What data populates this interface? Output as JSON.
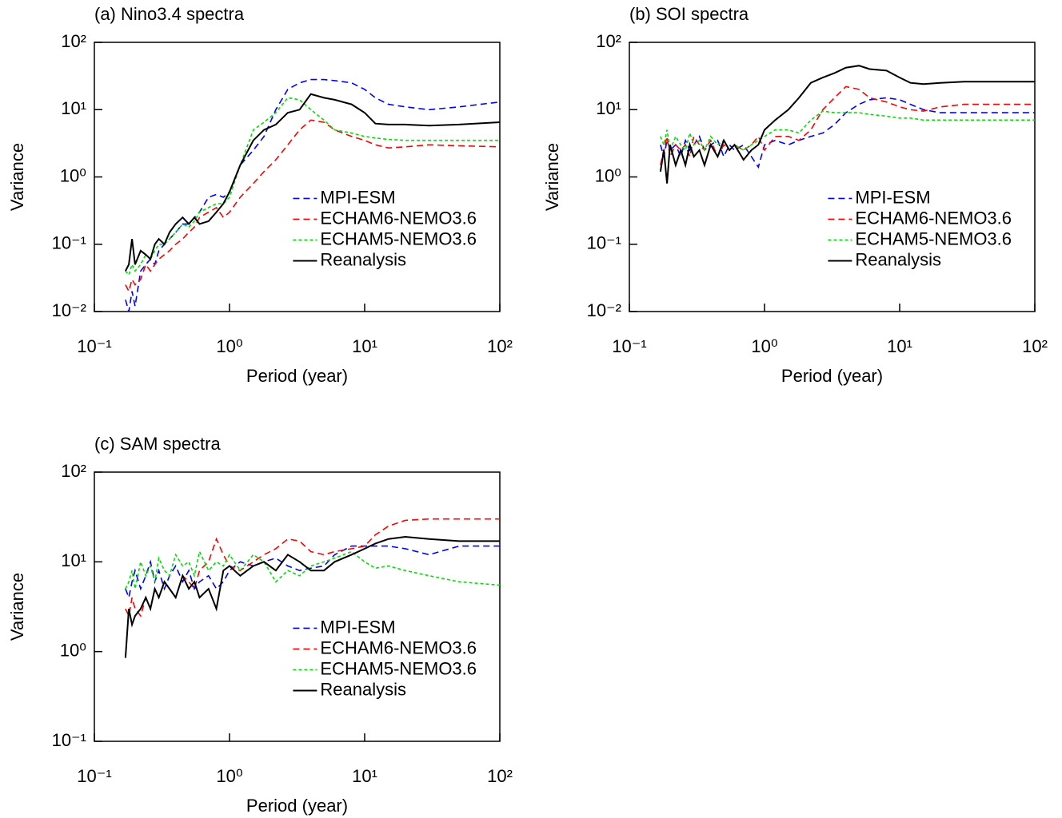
{
  "chart_data": [
    {
      "type": "line",
      "title": "(a) Nino3.4 spectra",
      "xlabel": "Period (year)",
      "ylabel": "Variance",
      "log_x": true,
      "log_y": true,
      "legend": "center",
      "xlim": [
        0.1,
        100
      ],
      "ylim": [
        0.01,
        100
      ],
      "xticks": [
        {
          "value": 0.1,
          "label": "10⁻¹"
        },
        {
          "value": 1,
          "label": "10⁰"
        },
        {
          "value": 10,
          "label": "10¹"
        },
        {
          "value": 100,
          "label": "10²"
        }
      ],
      "yticks": [
        {
          "value": 0.01,
          "label": "10⁻²"
        },
        {
          "value": 0.1,
          "label": "10⁻¹"
        },
        {
          "value": 1,
          "label": "10⁰"
        },
        {
          "value": 10,
          "label": "10¹"
        },
        {
          "value": 100,
          "label": "10²"
        }
      ],
      "x": [
        0.17,
        0.18,
        0.19,
        0.2,
        0.22,
        0.24,
        0.26,
        0.28,
        0.3,
        0.33,
        0.36,
        0.4,
        0.45,
        0.5,
        0.55,
        0.6,
        0.7,
        0.8,
        0.9,
        1,
        1.2,
        1.5,
        1.8,
        2.2,
        2.7,
        3.3,
        4,
        5,
        6,
        8,
        10,
        12,
        15,
        20,
        30,
        50,
        100
      ],
      "series": [
        {
          "name": "MPI-ESM",
          "color": "#0000ff",
          "dash": "dashed",
          "values": [
            0.015,
            0.01,
            0.02,
            0.012,
            0.04,
            0.05,
            0.06,
            0.05,
            0.08,
            0.1,
            0.12,
            0.15,
            0.2,
            0.2,
            0.25,
            0.3,
            0.5,
            0.55,
            0.5,
            0.6,
            1.5,
            2.5,
            4,
            10,
            20,
            25,
            28,
            28,
            27,
            25,
            20,
            15,
            12,
            11,
            10,
            11,
            13
          ]
        },
        {
          "name": "ECHAM6-NEMO3.6",
          "color": "#ff0000",
          "dash": "dashed",
          "values": [
            0.025,
            0.02,
            0.03,
            0.025,
            0.03,
            0.05,
            0.04,
            0.05,
            0.06,
            0.07,
            0.08,
            0.1,
            0.12,
            0.15,
            0.18,
            0.25,
            0.3,
            0.35,
            0.25,
            0.3,
            0.5,
            0.8,
            1.2,
            1.8,
            3,
            5,
            7,
            6.5,
            5,
            4,
            3.5,
            3,
            2.7,
            2.8,
            3,
            2.9,
            2.8
          ]
        },
        {
          "name": "ECHAM5-NEMO3.6",
          "color": "#00e000",
          "dash": "dotted",
          "values": [
            0.04,
            0.035,
            0.05,
            0.04,
            0.05,
            0.07,
            0.06,
            0.08,
            0.1,
            0.1,
            0.12,
            0.15,
            0.2,
            0.18,
            0.22,
            0.3,
            0.35,
            0.4,
            0.4,
            0.5,
            1.5,
            5,
            6.5,
            9,
            15,
            14,
            10,
            7,
            5,
            4.5,
            4,
            3.8,
            3.6,
            3.5,
            3.5,
            3.5,
            3.5
          ]
        },
        {
          "name": "Reanalysis",
          "color": "#000000",
          "dash": "solid",
          "values": [
            0.04,
            0.05,
            0.12,
            0.05,
            0.08,
            0.07,
            0.06,
            0.1,
            0.12,
            0.1,
            0.15,
            0.2,
            0.25,
            0.2,
            0.25,
            0.2,
            0.22,
            0.3,
            0.4,
            0.6,
            1.5,
            3.5,
            5,
            6,
            9,
            10,
            17,
            15,
            14,
            12,
            9,
            6.2,
            6,
            6,
            5.8,
            6,
            6.5
          ]
        }
      ]
    },
    {
      "type": "line",
      "title": "(b) SOI spectra",
      "xlabel": "Period (year)",
      "ylabel": "Variance",
      "log_x": true,
      "log_y": true,
      "legend": "center",
      "xlim": [
        0.1,
        100
      ],
      "ylim": [
        0.01,
        100
      ],
      "xticks": [
        {
          "value": 0.1,
          "label": "10⁻¹"
        },
        {
          "value": 1,
          "label": "10⁰"
        },
        {
          "value": 10,
          "label": "10¹"
        },
        {
          "value": 100,
          "label": "10²"
        }
      ],
      "yticks": [
        {
          "value": 0.01,
          "label": "10⁻²"
        },
        {
          "value": 0.1,
          "label": "10⁻¹"
        },
        {
          "value": 1,
          "label": "10⁰"
        },
        {
          "value": 10,
          "label": "10¹"
        },
        {
          "value": 100,
          "label": "10²"
        }
      ],
      "x": [
        0.17,
        0.18,
        0.19,
        0.2,
        0.22,
        0.24,
        0.26,
        0.28,
        0.3,
        0.33,
        0.36,
        0.4,
        0.45,
        0.5,
        0.55,
        0.6,
        0.7,
        0.8,
        0.9,
        1,
        1.2,
        1.5,
        1.8,
        2.2,
        2.7,
        3.3,
        4,
        5,
        6,
        8,
        10,
        12,
        15,
        20,
        30,
        50,
        100
      ],
      "series": [
        {
          "name": "MPI-ESM",
          "color": "#0000ff",
          "dash": "dashed",
          "values": [
            3,
            2,
            3.5,
            2.5,
            3,
            2,
            3.5,
            2.5,
            3,
            4,
            2.5,
            3,
            3.5,
            2,
            3,
            2.5,
            3,
            2,
            1.4,
            3,
            3.5,
            3,
            3.5,
            4,
            4.5,
            6,
            9,
            12,
            14,
            15,
            14,
            12,
            10,
            9,
            9,
            9,
            9
          ]
        },
        {
          "name": "ECHAM6-NEMO3.6",
          "color": "#ff0000",
          "dash": "dashed",
          "values": [
            1.5,
            2.5,
            4,
            2,
            3,
            2.5,
            3,
            2,
            4,
            3,
            2.5,
            3.5,
            2,
            3,
            2.5,
            3,
            2.5,
            3,
            4,
            2.5,
            4,
            4,
            3.5,
            5,
            10,
            15,
            22,
            20,
            15,
            13,
            11,
            10,
            9.5,
            11,
            12,
            12,
            12
          ]
        },
        {
          "name": "ECHAM5-NEMO3.6",
          "color": "#00e000",
          "dash": "dotted",
          "values": [
            4,
            3,
            5,
            2.5,
            4,
            3,
            2.5,
            4.5,
            3,
            3.5,
            2.5,
            4,
            3,
            3.5,
            2.5,
            3,
            2.5,
            3,
            3.5,
            4,
            5,
            5,
            4.5,
            7,
            9.5,
            9,
            9,
            9,
            8.5,
            8,
            7.5,
            7.5,
            7,
            7,
            7,
            7,
            7
          ]
        },
        {
          "name": "Reanalysis",
          "color": "#000000",
          "dash": "solid",
          "values": [
            1.2,
            2.5,
            0.8,
            3,
            1.5,
            2.5,
            1.5,
            3,
            2,
            2.5,
            1.5,
            3,
            2,
            3.5,
            2.5,
            3,
            1.8,
            2.5,
            3,
            5,
            7,
            10,
            15,
            25,
            30,
            35,
            42,
            45,
            40,
            38,
            30,
            25,
            24,
            25,
            26,
            26,
            26
          ]
        }
      ]
    },
    {
      "type": "line",
      "title": "(c) SAM spectra",
      "xlabel": "Period (year)",
      "ylabel": "Variance",
      "log_x": true,
      "log_y": true,
      "legend": "center",
      "xlim": [
        0.1,
        100
      ],
      "ylim": [
        0.1,
        100
      ],
      "xticks": [
        {
          "value": 0.1,
          "label": "10⁻¹"
        },
        {
          "value": 1,
          "label": "10⁰"
        },
        {
          "value": 10,
          "label": "10¹"
        },
        {
          "value": 100,
          "label": "10²"
        }
      ],
      "yticks": [
        {
          "value": 0.1,
          "label": "10⁻¹"
        },
        {
          "value": 1,
          "label": "10⁰"
        },
        {
          "value": 10,
          "label": "10¹"
        },
        {
          "value": 100,
          "label": "10²"
        }
      ],
      "x": [
        0.17,
        0.18,
        0.19,
        0.2,
        0.22,
        0.24,
        0.26,
        0.28,
        0.3,
        0.33,
        0.36,
        0.4,
        0.45,
        0.5,
        0.55,
        0.6,
        0.7,
        0.8,
        0.9,
        1,
        1.2,
        1.5,
        1.8,
        2.2,
        2.7,
        3.3,
        4,
        5,
        6,
        8,
        10,
        12,
        15,
        20,
        30,
        50,
        100
      ],
      "series": [
        {
          "name": "MPI-ESM",
          "color": "#0000ff",
          "dash": "dashed",
          "values": [
            5,
            4,
            6,
            8,
            5,
            7,
            10,
            6,
            8,
            5,
            7,
            9,
            6,
            8,
            5,
            6,
            7,
            5,
            6,
            8,
            10,
            9,
            10,
            11,
            9,
            8,
            8.5,
            9,
            12,
            15,
            15,
            15,
            15,
            14,
            12,
            15,
            15
          ]
        },
        {
          "name": "ECHAM6-NEMO3.6",
          "color": "#ff0000",
          "dash": "dashed",
          "values": [
            3,
            2.5,
            4,
            3,
            2.5,
            4,
            3,
            5,
            4,
            6,
            5,
            4,
            7,
            6,
            5,
            8,
            10,
            18,
            12,
            9,
            8,
            10,
            12,
            14,
            18,
            17,
            13,
            12,
            13,
            14,
            15,
            20,
            25,
            29,
            30,
            30,
            30
          ]
        },
        {
          "name": "ECHAM5-NEMO3.6",
          "color": "#00e000",
          "dash": "dotted",
          "values": [
            5,
            6,
            8,
            5,
            10,
            7,
            9,
            6,
            11,
            8,
            7,
            12,
            9,
            10,
            7,
            13,
            8,
            10,
            9,
            12,
            8,
            12,
            10,
            6,
            8,
            7,
            9,
            10,
            11,
            13,
            10,
            8.5,
            9,
            8,
            7,
            6,
            5.5
          ]
        },
        {
          "name": "Reanalysis",
          "color": "#000000",
          "dash": "solid",
          "values": [
            0.85,
            3,
            2,
            2.5,
            3,
            4,
            3,
            5,
            4,
            6,
            5,
            4,
            7,
            5,
            6,
            4,
            5,
            3,
            8,
            9,
            7,
            9,
            10,
            8,
            12,
            10,
            8,
            8,
            10,
            12,
            14,
            16,
            18,
            19,
            18,
            17,
            17
          ]
        }
      ]
    }
  ]
}
